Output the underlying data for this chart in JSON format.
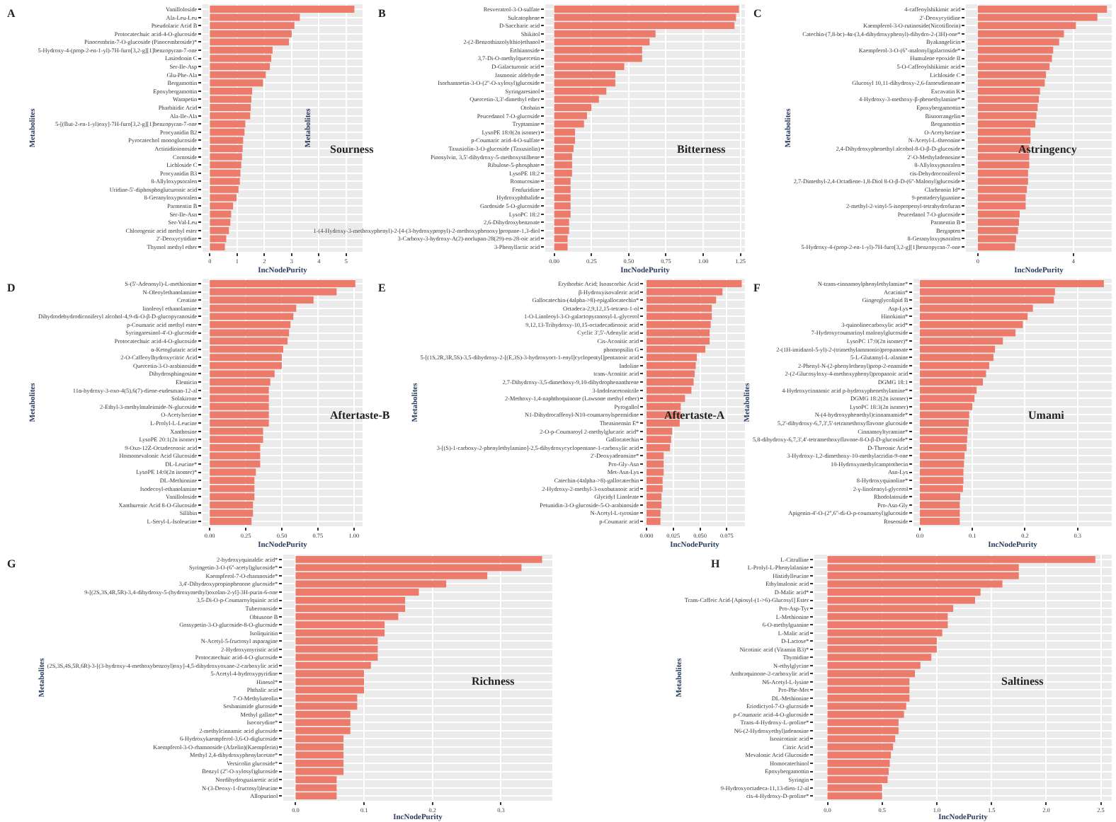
{
  "chart_data": [
    {
      "type": "bar",
      "orientation": "horizontal",
      "title": "A",
      "xlabel": "IncNodePurity",
      "ylabel": "Metabolites",
      "annotations": [
        "Sourness"
      ],
      "color": "#ec7b6b",
      "grid": true,
      "xlim": [
        -0.27,
        5.6
      ],
      "xticks": [
        0,
        1,
        2,
        3,
        4,
        5
      ],
      "categories": [
        "Vanilloloside",
        "Ala-Leu-Leu",
        "Pseudolaric Acid B",
        "Protocatechuic acid-4-O-glucoside",
        "Pinocembrin-7-O-glucoside (Pinocembroside)*",
        "5-Hydroxy-4-(prop-2-en-1-yl)-7H-furo[3,2-g][1]benzopyran-7-one",
        "Lasiodonin C",
        "Ser-Ile-Asp",
        "Glu-Phe-Ala",
        "Bergamottin",
        "Epoxybergamottin",
        "Wampetin",
        "Pharbitidic Acid",
        "Ala-Ile-Ala",
        "5-[(But-2-en-1-yl)oxy]-7H-furo[3,2-g][1]benzopyran-7-one",
        "Procyanidin B2",
        "Pyrocatechol monoglucoside",
        "Actinidioionoside",
        "Cornoside",
        "Lichloside C",
        "Procyanidin B3",
        "8-Allyloxypsoralen",
        "Uridine-5'-diphosphoglucuronic acid",
        "8-Geranyloxypsoralen",
        "Parmentin B",
        "Ser-Ile-Asn",
        "Ser-Val-Leu",
        "Chlorogenic acid methyl ester",
        "2'-Deoxycytidine",
        "Thymol methyl ether"
      ],
      "values": [
        5.3,
        3.3,
        3.1,
        3.0,
        2.9,
        2.3,
        2.25,
        2.2,
        2.05,
        1.95,
        1.55,
        1.52,
        1.5,
        1.48,
        1.3,
        1.27,
        1.22,
        1.2,
        1.18,
        1.15,
        1.12,
        1.1,
        1.05,
        0.98,
        0.85,
        0.78,
        0.75,
        0.7,
        0.6,
        0.55
      ]
    },
    {
      "type": "bar",
      "orientation": "horizontal",
      "title": "B",
      "xlabel": "IncNodePurity",
      "ylabel": "Metabolites",
      "annotations": [
        "Bitterness"
      ],
      "color": "#ec7b6b",
      "grid": true,
      "xlim": [
        -0.06,
        1.28
      ],
      "xticks": [
        {
          "value": 0,
          "label": "0.00"
        },
        {
          "value": 0.25,
          "label": "0.25"
        },
        {
          "value": 0.5,
          "label": "0.50"
        },
        {
          "value": 0.75,
          "label": "0.75"
        },
        {
          "value": 1,
          "label": "1.00"
        },
        {
          "value": 1.25,
          "label": "1.25"
        }
      ],
      "categories": [
        "Resveratrol-3-O-sulfate",
        "Sulcatophene",
        "D-Saccharic acid",
        "Shikitol",
        "2-(2-Benzothiazolylthio)ethanol",
        "Erthianoside",
        "3,7-Di-O-methylquercetin",
        "D-Galacturonic acid",
        "Jasmonic aldehyde",
        "Isorhamnetin-3-O-(2''-O-xylosyl)glucoside",
        "Syringaresinol",
        "Quercetin-3,3'-dimethyl ether",
        "Otobain",
        "Peucedanol 7-O-glucoside",
        "Tryptamine",
        "LysoPE 18:0(2n isomer)",
        "p-Coumaric acid-4-O-sulfate",
        "Taxusiolin-3-O-glucoside (Taxusiolin)",
        "Pinosylvin, 3,5'-dihydroxy-5-methoxystilbene",
        "Ribulose-5-phosphate",
        "LysoPE 18:2",
        "Romucosine",
        "Fenfuridine",
        "Hydroxyphthalide",
        "Gardoside 5-O-glucoside",
        "LysoPC 18:2",
        "2,6-Dihydroxybenzoate",
        "1-(4-Hydroxy-3-methoxyphenyl)-2-[4-(3-hydroxypropyl)-2-methoxyphenoxy]propane-1,3-diol",
        "3-Carboxy-3-hydroxy-A(2)-norlupan-28(29)-en-28-oic acid",
        "3-Phenyllactic acid"
      ],
      "values": [
        1.24,
        1.22,
        1.21,
        0.68,
        0.64,
        0.59,
        0.59,
        0.47,
        0.41,
        0.41,
        0.35,
        0.3,
        0.25,
        0.22,
        0.2,
        0.14,
        0.14,
        0.13,
        0.12,
        0.12,
        0.12,
        0.11,
        0.11,
        0.11,
        0.11,
        0.11,
        0.1,
        0.1,
        0.09,
        0.09
      ]
    },
    {
      "type": "bar",
      "orientation": "horizontal",
      "title": "C",
      "xlabel": "IncNodePurity",
      "ylabel": "Metabolites",
      "annotations": [
        "Astringency"
      ],
      "color": "#ec7b6b",
      "grid": true,
      "xlim": [
        -0.5,
        5.6
      ],
      "xticks": [
        0,
        4
      ],
      "categories": [
        "4-caffeoylshikimic acid",
        "2'-Deoxycytidine",
        "Kaempferol-3-O-rutinoside(Nicotiflorin)",
        "Catechin-(7,8-bc)-4α-(3,4-dihydroxyphenyl)-dihydro-2-(3H)-one*",
        "Byakangelicin",
        "Kaempferol-3-O-(6''-malonyl)galactoside*",
        "Humulene epoxide II",
        "5-O-Caffeoylshikimic acid",
        "Lichloside C",
        "Glucosyl 10,11-dihydroxy-2,6-farnesdienoate",
        "Excavatin K",
        "4-Hydroxy-3-methoxy-β-phenethylamine*",
        "Epoxybergamottin",
        "Bisnorrangelin",
        "Bergamottin",
        "O-Acetylserine",
        "N-Acetyl-L-threonine",
        "2,4-Dihydroxyphenethyl alcohol-8-O-β-D-glucoside",
        "2'-O-Methyladenosine",
        "8-Allyloxypsoralen",
        "cis-Dehydroconiferol",
        "2,7-Dimethyl-2,4-Octadiene-1,8-Diol 8-O-β-D-(6''-Malonyl)glucoside",
        "Clarhenoin Id*",
        "9-pentaderylguanine",
        "2-methyl-2-vinyl-5-isopropenyl-tetrahydrofuran",
        "Peucedanol 7-O-glucoside",
        "Parmentin B",
        "Bergapten",
        "8-Geranyloxypsoralen",
        "5-Hydroxy-4-(prop-2-en-1-yl)-7H-furo[3,2-g][1]benzopyran-7-one"
      ],
      "values": [
        5.4,
        5.0,
        4.1,
        3.6,
        3.4,
        3.15,
        3.1,
        3.0,
        2.85,
        2.8,
        2.6,
        2.55,
        2.5,
        2.45,
        2.4,
        2.2,
        2.2,
        2.15,
        2.15,
        2.15,
        2.1,
        2.1,
        2.05,
        2.0,
        2.0,
        1.75,
        1.72,
        1.68,
        1.6,
        1.55
      ]
    },
    {
      "type": "bar",
      "orientation": "horizontal",
      "title": "D",
      "xlabel": "IncNodePurity",
      "ylabel": "Metabolites",
      "annotations": [
        "Aftertaste-B"
      ],
      "color": "#ec7b6b",
      "grid": true,
      "xlim": [
        -0.05,
        1.06
      ],
      "xticks": [
        {
          "value": 0,
          "label": "0.00"
        },
        {
          "value": 0.25,
          "label": "0.25"
        },
        {
          "value": 0.5,
          "label": "0.50"
        },
        {
          "value": 0.75,
          "label": "0.75"
        },
        {
          "value": 1,
          "label": "1.00"
        }
      ],
      "categories": [
        "S-(5'-Adenosyl)-L-methionine",
        "N-Oleoylethanolamine",
        "Creatine",
        "linoleoyl ethanolamine",
        "Dihydrodehydrodiconiferyl alcohol-4,9-di-O-β-D-glucopyranoside",
        "p-Coumaric acid methyl ester",
        "Syringaresinol-4'-O-glucoside",
        "Protocatechuic acid-4-O-glucoside",
        "α-Ketoglutaric acid",
        "2-O-Caffeoylhydroxycitric Acid",
        "Quercetin-3-O-arabinoside",
        "Dihydrosphingosine",
        "Elemicin",
        "11α-hydroxy-3-oxo-4(5),6(7)-diene-eudesman-12-al",
        "Solakirone",
        "2-Ethyl-3-methylmaleimide-N-glucoside",
        "O-Acetylserine",
        "L-Prolyl-L-Leucine",
        "Xanthosine",
        "LysoPE 20:1(2n isomer)",
        "9-Oxo-12Z-Octadecenoic acid",
        "Homomevalonic Acid Glucoside",
        "DL-Leucine*",
        "LysoPE 14:0(2n isomer)*",
        "DL-Methionine",
        "Isodecoyl-ethanolamine",
        "Vanilloloside",
        "Xanthurenic Acid 8-O-Glucoside",
        "Sillibin",
        "L-Seryl-L-Isoleucine"
      ],
      "values": [
        1.01,
        0.88,
        0.72,
        0.6,
        0.58,
        0.56,
        0.55,
        0.54,
        0.51,
        0.5,
        0.5,
        0.45,
        0.42,
        0.41,
        0.41,
        0.41,
        0.41,
        0.41,
        0.37,
        0.37,
        0.35,
        0.35,
        0.35,
        0.32,
        0.31,
        0.31,
        0.31,
        0.3,
        0.3,
        0.29
      ]
    },
    {
      "type": "bar",
      "orientation": "horizontal",
      "title": "E",
      "xlabel": "IncNodePurity",
      "ylabel": "Metabolites",
      "annotations": [
        "Aftertaste-A"
      ],
      "color": "#ec7b6b",
      "grid": true,
      "xlim": [
        -0.002,
        0.092
      ],
      "xticks": [
        {
          "value": 0,
          "label": "0.000"
        },
        {
          "value": 0.025,
          "label": "0.025"
        },
        {
          "value": 0.05,
          "label": "0.050"
        },
        {
          "value": 0.075,
          "label": "0.075"
        }
      ],
      "categories": [
        "Erythorbic Acid; Isoascorbic Acid",
        "β-Hydroxyisovaleric acid",
        "Gallocatechin-(4alpha->8)-epigallocatechin*",
        "Octadeca-2,9,12,15-tetraen-1-ol",
        "1-O-Linoleoyl-3-O-galactopyranosyl-L-glycerol",
        "9,12,13-Trihydroxy-10,15-octadecadienoic acid",
        "Cyclic 3',5'-Adenylic acid",
        "Cis-Aconitic acid",
        "phomopsilin G",
        "5-[(1S,2R,3R,5S)-3,5-dihydroxy-2-[(E,3S)-3-hydroxyoct-1-enyl]cyclopentyl]pentanoic acid",
        "Indoline",
        "trans-Aconitic acid",
        "2,7-Dihydroxy-3,5-dimethoxy-9,10-dihydrophenanthrene",
        "3-Indoleacetonitrile",
        "2-Methoxy-1,4-naphthoquinone (Lawsone methyl ether)",
        "Pyrogallol",
        "N1-Dihydrocaffeoyl-N10-coumaroylspermidine",
        "Theasinensin E*",
        "2-O-p-Coumaroyl 2-methylglucaric acid*",
        "Gallocatechin",
        "3-[(S)-1-carboxy-2-phenylethylamino]-2,5-dihydroxycyclopentane-1-carboxylic acid",
        "2'-Deoxyadenosine*",
        "Pro-Gly-Asn",
        "Met-Asn-Lys",
        "Catechin-(4alpha->8)-gallocatechin",
        "2-Hydroxy-2-methyl-3-oxobutanoic acid",
        "Glycidyl Linoleate",
        "Petunidin-3-O-glucoside-5-O-arabinoside",
        "N-Acetyl-L-tyrosine",
        "p-Coumaric acid"
      ],
      "values": [
        0.089,
        0.071,
        0.065,
        0.061,
        0.061,
        0.06,
        0.059,
        0.059,
        0.055,
        0.047,
        0.046,
        0.045,
        0.044,
        0.042,
        0.036,
        0.032,
        0.032,
        0.031,
        0.024,
        0.023,
        0.022,
        0.016,
        0.016,
        0.016,
        0.015,
        0.015,
        0.014,
        0.014,
        0.013,
        0.013
      ]
    },
    {
      "type": "bar",
      "orientation": "horizontal",
      "title": "F",
      "xlabel": "IncNodePurity",
      "ylabel": "Metabolites",
      "annotations": [
        "Umami"
      ],
      "color": "#ec7b6b",
      "grid": true,
      "xlim": [
        -0.012,
        0.365
      ],
      "xticks": [
        {
          "value": 0,
          "label": "0.0"
        },
        0.1,
        0.2,
        0.3
      ],
      "categories": [
        "N-trans-cinnamoylphenylethylamine*",
        "Acacinin*",
        "Gingerglycolipid B",
        "Asp-Lys",
        "Hinokinin*",
        "3-quinolinecarboxylic acid*",
        "7-Hydroxycoumarinyl malonylglucoside",
        "LysoPC 17:0(2n isomer)*",
        "2-(1H-imidazol-5-yl)-2-(trimethylammonio)propanoate",
        "5-L-Glutamyl-L-alanine",
        "2-Phenyl-N-(2-phenylethenyl)prop-2-enamide",
        "2-(2-Glucosyloxy-4-methoxyphenyl)propanoic acid",
        "DGMG 18:1",
        "4-Hydroxycinnamic acid p-hydroxyphenethylamine*",
        "DGMG 18:2(2n isomer)",
        "LysoPC 18:3(2n isomer)",
        "N-(4-hydroxyphenethyl)cinnamamide*",
        "5,2'-dihydroxy-6,7,3',5'-tetramethoxyflavone glucoside",
        "Cinnamoyltyramine*",
        "5,8-dihydroxy-6,7,3',4'-tetramethoxyflavone-8-O-β-D-glucoside*",
        "D-Threonic Acid",
        "3-Hydroxy-1,2-dimethoxy-10-methylacridin-9-one",
        "10-Hydroxymethylcamptothecin",
        "Asn-Lys",
        "8-Hydroxyquinoline*",
        "2-γ-linolenoyl-glycerol",
        "Rhodolatoside",
        "Pro-Asn-Gly",
        "Apigenin-4'-O-(2'',6''-di-O-p-coumaroyl)glucoside",
        "Roseoside"
      ],
      "values": [
        0.35,
        0.257,
        0.255,
        0.215,
        0.205,
        0.196,
        0.182,
        0.158,
        0.143,
        0.14,
        0.132,
        0.126,
        0.12,
        0.108,
        0.104,
        0.1,
        0.094,
        0.093,
        0.091,
        0.09,
        0.089,
        0.085,
        0.084,
        0.083,
        0.083,
        0.082,
        0.077,
        0.076,
        0.076,
        0.076
      ]
    },
    {
      "type": "bar",
      "orientation": "horizontal",
      "title": "G",
      "xlabel": "IncNodePurity",
      "ylabel": "Metabolites",
      "annotations": [
        "Richness"
      ],
      "color": "#ec7b6b",
      "grid": true,
      "xlim": [
        -0.018,
        0.375
      ],
      "xticks": [
        {
          "value": 0,
          "label": "0.0"
        },
        0.1,
        0.2,
        0.3
      ],
      "categories": [
        "2-hydroxyquinaldic acid*",
        "Syringetin-3-O-(6''-acetyl)glucoside*",
        "Kaempferol-7-O-rhamnoside*",
        "3,4'-Dihydroxypropiophenone glucoside*",
        "9-[(2S,3S,4R,5R)-3,4-dihydroxy-5-(hydroxymethyl)oxolan-2-yl]-3H-purin-6-one",
        "3,5-Di-O-p-Coumaroylquinic acid",
        "Tuberonoside",
        "Obtusone B",
        "Gossypetin-3-O-glucoside-8-O-glucoside",
        "Isoliquiritin",
        "N-Acetyl-5-fructosyl asparagine",
        "2-Hydroxymyristic acid",
        "Protocatechuic acid-4-O-glucoside",
        "(2S,3S,4S,5R,6R)-3-[(3-hydroxy-4-methoxybenzoyl)oxy]-4,5-dihydroxyoxane-2-carboxylic acid",
        "5-Acetyl-4-hydroxypyridine",
        "Hinesol*",
        "Phthalic acid",
        "7-O-Methyluteolin",
        "Sesbanimide glucoside",
        "Methyl gallate*",
        "Isocorydine*",
        "2-methylcinnamic acid glucoside",
        "6-Hydroxykaempferol-3,6-O-diglucoside",
        "Kaempferol-3-O-rhamnoside (Afzelin)(Kaempferin)",
        "Methyl 2,4-dihydroxyphenylacetate*",
        "Versicolin glucoside*",
        "Benzyl (2''-O-xylosyl)glucoside",
        "Nordihydroguaiaretic acid",
        "N-(3-Deoxy-1-fructosyl)leucine",
        "Allopurinol"
      ],
      "values": [
        0.36,
        0.33,
        0.28,
        0.22,
        0.18,
        0.16,
        0.16,
        0.15,
        0.13,
        0.13,
        0.12,
        0.12,
        0.12,
        0.11,
        0.1,
        0.1,
        0.1,
        0.09,
        0.09,
        0.08,
        0.08,
        0.08,
        0.07,
        0.07,
        0.07,
        0.07,
        0.07,
        0.06,
        0.06,
        0.06
      ]
    },
    {
      "type": "bar",
      "orientation": "horizontal",
      "title": "H",
      "xlabel": "IncNodePurity",
      "ylabel": "Metabolites",
      "annotations": [
        "Saltiness"
      ],
      "color": "#ec7b6b",
      "grid": true,
      "xlim": [
        -0.12,
        2.6
      ],
      "xticks": [
        {
          "value": 0,
          "label": "0.0"
        },
        0.5,
        {
          "value": 1,
          "label": "1.0"
        },
        1.5,
        {
          "value": 2,
          "label": "2.0"
        },
        2.5
      ],
      "categories": [
        "L-Citrulline",
        "L-Prolyl-L-Phenylalanine",
        "Histidylleucine",
        "Ethylmalonic acid",
        "D-Malic acid*",
        "Trans-Caffeic Acid-[Apiosyl-(1->6)-Glucosyl] Ester",
        "Pro-Asp-Tyr",
        "L-Methionine",
        "6-O-methylguanine",
        "L-Malic acid",
        "D-Lactose*",
        "Nicotinic acid (Vitamin B3)*",
        "Thymidine",
        "N-ethylglycine",
        "Anthraquinone-2-carboxylic acid",
        "N6-Acetyl-L-lysine",
        "Pro-Phe-Met",
        "DL-Methionine",
        "Eriodictyol-7-O-glucoside",
        "p-Coumaric acid-4-O-glucoside",
        "Trans-4-Hydroxy-L-proline*",
        "N6-(2-Hydroxyethyl)adenosine",
        "Isonicotinic acid",
        "Citric Acid",
        "Mevalonic Acid Glucoside",
        "Homocatechinol",
        "Epoxybergamottin",
        "Syringin",
        "9-Hydroxyoctadeca-11,13-dien-12-al",
        "cis-4-Hydroxy-D-proline*"
      ],
      "values": [
        2.45,
        1.75,
        1.75,
        1.6,
        1.4,
        1.35,
        1.15,
        1.1,
        1.1,
        1.05,
        1.0,
        1.0,
        0.95,
        0.85,
        0.8,
        0.75,
        0.75,
        0.75,
        0.72,
        0.7,
        0.65,
        0.65,
        0.62,
        0.6,
        0.58,
        0.57,
        0.56,
        0.55,
        0.5,
        0.5
      ]
    }
  ]
}
